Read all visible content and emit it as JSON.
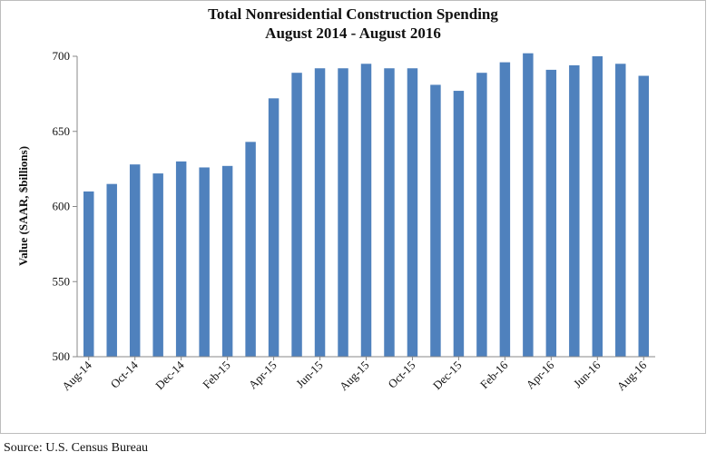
{
  "chart_data": {
    "type": "bar",
    "title": "Total Nonresidential Construction Spending",
    "subtitle": "August 2014 - August 2016",
    "ylabel": "Value (SAAR, $billions)",
    "xlabel": "",
    "ylim": [
      500,
      700
    ],
    "yticks": [
      500,
      550,
      600,
      650,
      700
    ],
    "bar_color": "#4f81bd",
    "grid": false,
    "categories": [
      "Aug-14",
      "Sep-14",
      "Oct-14",
      "Nov-14",
      "Dec-14",
      "Jan-15",
      "Feb-15",
      "Mar-15",
      "Apr-15",
      "May-15",
      "Jun-15",
      "Jul-15",
      "Aug-15",
      "Sep-15",
      "Oct-15",
      "Nov-15",
      "Dec-15",
      "Jan-16",
      "Feb-16",
      "Mar-16",
      "Apr-16",
      "May-16",
      "Jun-16",
      "Jul-16",
      "Aug-16"
    ],
    "xtick_labels": [
      "Aug-14",
      "Oct-14",
      "Dec-14",
      "Feb-15",
      "Apr-15",
      "Jun-15",
      "Aug-15",
      "Oct-15",
      "Dec-15",
      "Feb-16",
      "Apr-16",
      "Jun-16",
      "Aug-16"
    ],
    "values": [
      610,
      615,
      628,
      622,
      630,
      626,
      627,
      643,
      672,
      689,
      692,
      692,
      695,
      692,
      692,
      681,
      677,
      689,
      696,
      702,
      691,
      694,
      700,
      695,
      687
    ]
  },
  "footer": {
    "source": "Source:  U.S. Census Bureau"
  }
}
